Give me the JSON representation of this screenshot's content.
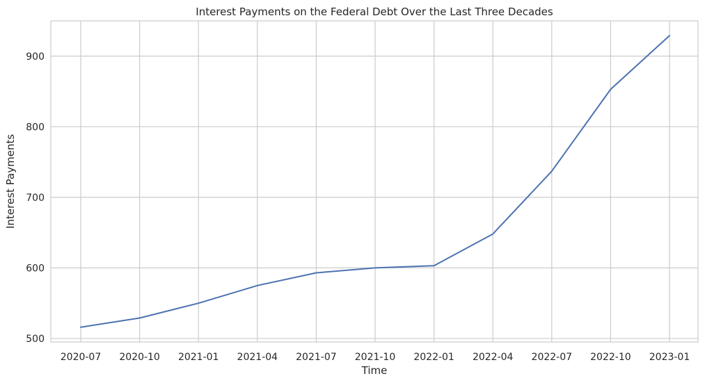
{
  "chart_data": {
    "type": "line",
    "title": "Interest Payments on the Federal Debt Over the Last Three Decades",
    "xlabel": "Time",
    "ylabel": "Interest Payments",
    "x": [
      "2020-07",
      "2020-10",
      "2021-01",
      "2021-04",
      "2021-07",
      "2021-10",
      "2022-01",
      "2022-04",
      "2022-07",
      "2022-10",
      "2023-01"
    ],
    "series": [
      {
        "values": [
          516,
          529,
          550,
          575,
          593,
          600,
          603,
          648,
          737,
          853,
          929
        ]
      }
    ],
    "yticks": [
      500,
      600,
      700,
      800,
      900
    ],
    "ylim": [
      495,
      950
    ],
    "grid": true,
    "colors": {
      "line": "#4c72b0",
      "grid": "#cccccc",
      "text": "#262626"
    }
  }
}
